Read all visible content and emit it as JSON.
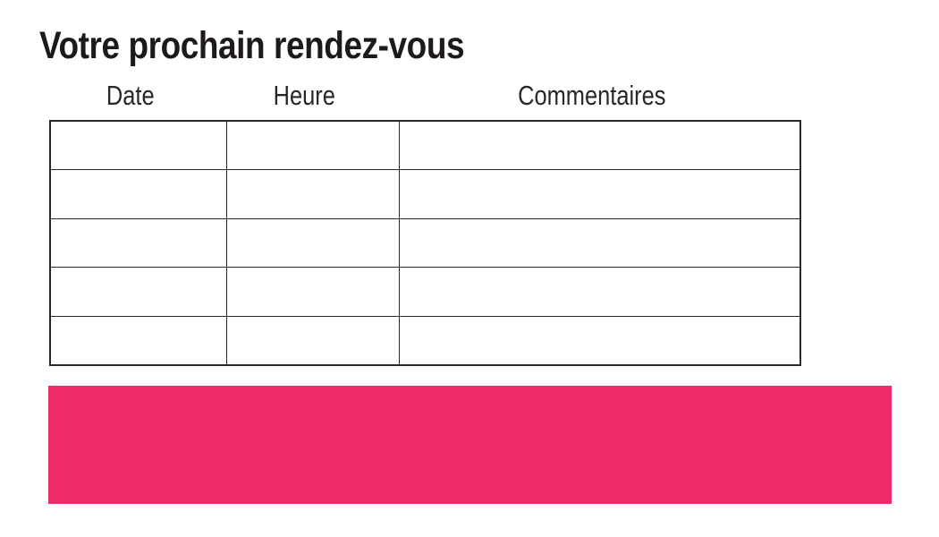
{
  "page": {
    "title": "Votre prochain rendez-vous"
  },
  "table": {
    "columns": [
      {
        "label": "Date"
      },
      {
        "label": "Heure"
      },
      {
        "label": "Commentaires"
      }
    ],
    "rows": [
      [
        "",
        "",
        ""
      ],
      [
        "",
        "",
        ""
      ],
      [
        "",
        "",
        ""
      ],
      [
        "",
        "",
        ""
      ],
      [
        "",
        "",
        ""
      ]
    ],
    "row_count": 5
  },
  "banner": {
    "text": ""
  },
  "colors": {
    "accent_pink": "#ed2b67",
    "table_border": "#2b282a",
    "text": "#231f20",
    "background": "#ffffff"
  }
}
